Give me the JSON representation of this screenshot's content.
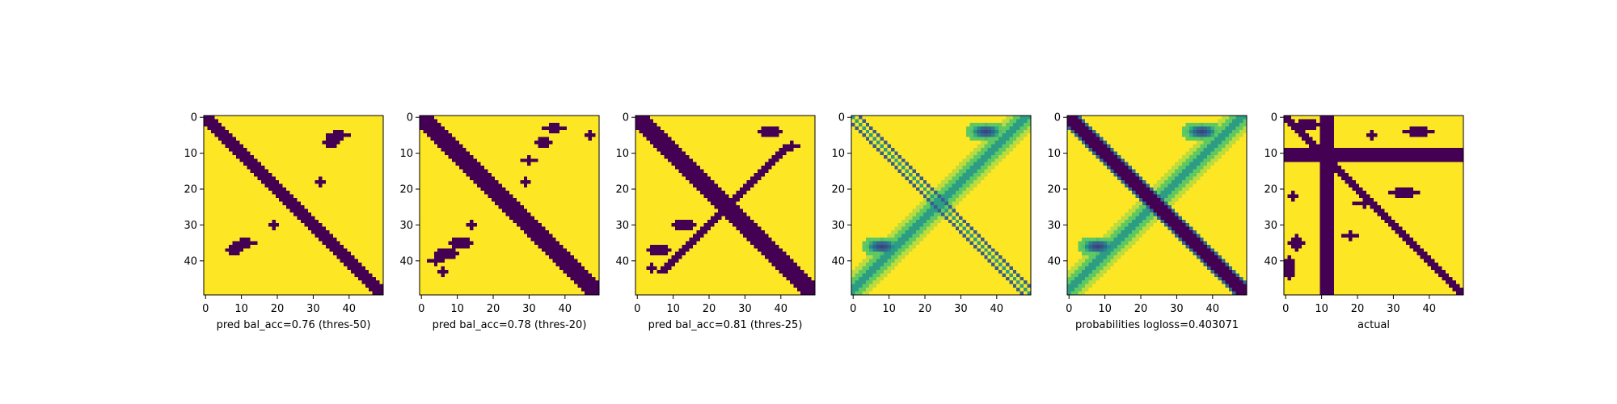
{
  "colors": {
    "low": "#440154",
    "high": "#fde725",
    "viridis": [
      "#440154",
      "#3b528b",
      "#21918c",
      "#5ec962",
      "#fde725"
    ]
  },
  "chart_data": [
    {
      "type": "heatmap",
      "colormap": "viridis",
      "values_range": [
        0,
        1
      ],
      "title": "",
      "ylabel": "",
      "xlabel": "pred bal_acc=0.76 (thres-50)",
      "xticks": [
        0,
        10,
        20,
        30,
        40
      ],
      "yticks": [
        0,
        10,
        20,
        30,
        40
      ],
      "xlim": [
        0,
        49
      ],
      "ylim": [
        49,
        0
      ],
      "binary": true,
      "diag_band": 2,
      "anti_diag": false,
      "probabilities": false,
      "blobs": [
        {
          "r": 5,
          "c": 37,
          "rx": 3,
          "ry": 1.2
        },
        {
          "r": 7,
          "c": 35,
          "rx": 2,
          "ry": 1.2
        },
        {
          "r": 35,
          "c": 11,
          "rx": 3,
          "ry": 1.2
        },
        {
          "r": 37,
          "c": 8,
          "rx": 2,
          "ry": 1.2
        },
        {
          "r": 30,
          "c": 19,
          "rx": 1,
          "ry": 1
        },
        {
          "r": 18,
          "c": 32,
          "rx": 1,
          "ry": 1
        }
      ]
    },
    {
      "type": "heatmap",
      "colormap": "viridis",
      "values_range": [
        0,
        1
      ],
      "title": "",
      "ylabel": "",
      "xlabel": "pred bal_acc=0.78 (thres-20)",
      "xticks": [
        0,
        10,
        20,
        30,
        40
      ],
      "yticks": [
        0,
        10,
        20,
        30,
        40
      ],
      "xlim": [
        0,
        49
      ],
      "ylim": [
        49,
        0
      ],
      "binary": true,
      "diag_band": 3,
      "anti_diag": false,
      "probabilities": false,
      "blobs": [
        {
          "r": 3,
          "c": 37,
          "rx": 3,
          "ry": 1.2
        },
        {
          "r": 7,
          "c": 34,
          "rx": 2,
          "ry": 1.5
        },
        {
          "r": 5,
          "c": 47,
          "rx": 1,
          "ry": 1
        },
        {
          "r": 12,
          "c": 30,
          "rx": 2,
          "ry": 1
        },
        {
          "r": 18,
          "c": 29,
          "rx": 1,
          "ry": 1
        },
        {
          "r": 35,
          "c": 11,
          "rx": 3,
          "ry": 1.5
        },
        {
          "r": 38,
          "c": 7,
          "rx": 3,
          "ry": 1.5
        },
        {
          "r": 40,
          "c": 4,
          "rx": 2,
          "ry": 1
        },
        {
          "r": 30,
          "c": 14,
          "rx": 1,
          "ry": 1
        },
        {
          "r": 43,
          "c": 6,
          "rx": 1,
          "ry": 1
        }
      ]
    },
    {
      "type": "heatmap",
      "colormap": "viridis",
      "values_range": [
        0,
        1
      ],
      "title": "",
      "ylabel": "",
      "xlabel": "pred bal_acc=0.81 (thres-25)",
      "xticks": [
        0,
        10,
        20,
        30,
        40
      ],
      "yticks": [
        0,
        10,
        20,
        30,
        40
      ],
      "xlim": [
        0,
        49
      ],
      "ylim": [
        49,
        0
      ],
      "binary": true,
      "diag_band": 3,
      "anti_diag": true,
      "probabilities": false,
      "blobs": [
        {
          "r": 4,
          "c": 37,
          "rx": 3,
          "ry": 1.5
        },
        {
          "r": 8,
          "c": 43,
          "rx": 2,
          "ry": 1
        },
        {
          "r": 30,
          "c": 13,
          "rx": 3,
          "ry": 1.5
        },
        {
          "r": 37,
          "c": 6,
          "rx": 3,
          "ry": 1.5
        },
        {
          "r": 42,
          "c": 4,
          "rx": 1,
          "ry": 1
        }
      ]
    },
    {
      "type": "heatmap",
      "colormap": "viridis",
      "values_range": [
        0,
        1
      ],
      "title": "",
      "ylabel": "",
      "xlabel": "",
      "xticks": [
        0,
        10,
        20,
        30,
        40
      ],
      "yticks": [
        0,
        10,
        20,
        30,
        40
      ],
      "xlim": [
        0,
        49
      ],
      "ylim": [
        49,
        0
      ],
      "binary": false,
      "diag_band": 0,
      "anti_diag": true,
      "probabilities": true,
      "offdiag_lines": [
        2,
        -2
      ],
      "blobs": [
        {
          "r": 4,
          "c": 37,
          "rx": 4,
          "ry": 2
        },
        {
          "r": 36,
          "c": 8,
          "rx": 4,
          "ry": 2
        }
      ]
    },
    {
      "type": "heatmap",
      "colormap": "viridis",
      "values_range": [
        0,
        1
      ],
      "title": "",
      "ylabel": "",
      "xlabel": "probabilities logloss=0.403071",
      "xticks": [
        0,
        10,
        20,
        30,
        40
      ],
      "yticks": [
        0,
        10,
        20,
        30,
        40
      ],
      "xlim": [
        0,
        49
      ],
      "ylim": [
        49,
        0
      ],
      "binary": false,
      "diag_band": 2,
      "anti_diag": true,
      "probabilities": true,
      "blobs": [
        {
          "r": 4,
          "c": 37,
          "rx": 4,
          "ry": 2
        },
        {
          "r": 36,
          "c": 8,
          "rx": 4,
          "ry": 2
        }
      ]
    },
    {
      "type": "heatmap",
      "colormap": "viridis",
      "values_range": [
        0,
        1
      ],
      "title": "",
      "ylabel": "",
      "xlabel": "actual",
      "xticks": [
        0,
        10,
        20,
        30,
        40
      ],
      "yticks": [
        0,
        10,
        20,
        30,
        40
      ],
      "xlim": [
        0,
        49
      ],
      "ylim": [
        49,
        0
      ],
      "binary": true,
      "diag_band": 1,
      "anti_diag": false,
      "probabilities": false,
      "cross_row": [
        9,
        12
      ],
      "cross_col": [
        10,
        13
      ],
      "blobs": [
        {
          "r": 4,
          "c": 37,
          "rx": 4,
          "ry": 1.5
        },
        {
          "r": 2,
          "c": 6,
          "rx": 3,
          "ry": 1.5
        },
        {
          "r": 21,
          "c": 33,
          "rx": 4,
          "ry": 1.5
        },
        {
          "r": 24,
          "c": 22,
          "rx": 3,
          "ry": 1
        },
        {
          "r": 35,
          "c": 3,
          "rx": 2,
          "ry": 2
        },
        {
          "r": 42,
          "c": 1,
          "rx": 1.5,
          "ry": 3
        },
        {
          "r": 33,
          "c": 18,
          "rx": 2,
          "ry": 1
        },
        {
          "r": 5,
          "c": 24,
          "rx": 1,
          "ry": 1
        },
        {
          "r": 22,
          "c": 2,
          "rx": 1,
          "ry": 1
        }
      ]
    }
  ]
}
